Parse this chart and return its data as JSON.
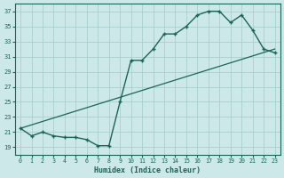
{
  "xlabel": "Humidex (Indice chaleur)",
  "ylabel": "",
  "bg_color": "#cce8e8",
  "grid_color": "#aacece",
  "line_color": "#1a6655",
  "xlim": [
    -0.5,
    23.5
  ],
  "ylim": [
    18,
    38
  ],
  "yticks": [
    19,
    21,
    23,
    25,
    27,
    29,
    31,
    33,
    35,
    37
  ],
  "xticks": [
    0,
    1,
    2,
    3,
    4,
    5,
    6,
    7,
    8,
    9,
    10,
    11,
    12,
    13,
    14,
    15,
    16,
    17,
    18,
    19,
    20,
    21,
    22,
    23
  ],
  "line1_x": [
    0,
    1,
    2,
    3,
    4,
    5,
    6,
    7,
    8,
    9,
    10,
    11,
    12,
    13,
    14,
    15,
    16,
    17,
    18,
    19,
    20,
    21,
    22,
    23
  ],
  "line1_y": [
    21.5,
    20.5,
    21.0,
    20.5,
    20.3,
    20.3,
    20.0,
    19.2,
    19.2,
    25.0,
    30.5,
    30.5,
    32.0,
    34.0,
    34.0,
    35.0,
    36.5,
    37.0,
    37.0,
    35.5,
    36.5,
    34.5,
    32.0,
    31.5
  ],
  "line2_x": [
    0,
    23
  ],
  "line2_y": [
    21.5,
    32.0
  ]
}
